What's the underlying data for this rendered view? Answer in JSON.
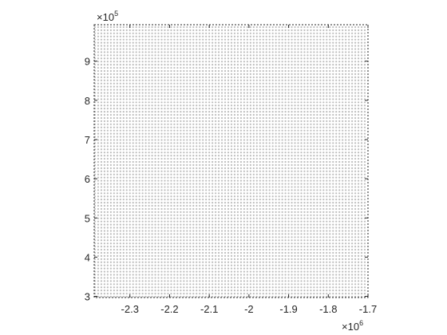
{
  "chart_data": {
    "type": "scatter",
    "title": "",
    "xlabel": "",
    "ylabel": "",
    "x_exponent_label": "×10",
    "x_exponent_power": "6",
    "y_exponent_label": "×10",
    "y_exponent_power": "5",
    "xlim": [
      -2390000,
      -1700000
    ],
    "ylim": [
      297000,
      993000
    ],
    "x_ticks": [
      -2300000,
      -2200000,
      -2100000,
      -2000000,
      -1900000,
      -1800000,
      -1700000
    ],
    "x_tick_labels": [
      "-2.3",
      "-2.2",
      "-2.1",
      "-2",
      "-1.9",
      "-1.8",
      "-1.7"
    ],
    "y_ticks": [
      300000,
      400000,
      500000,
      600000,
      700000,
      800000,
      900000
    ],
    "y_tick_labels": [
      "3",
      "4",
      "5",
      "6",
      "7",
      "8",
      "9"
    ],
    "grid": false,
    "box_style": "dashed",
    "point_grid": {
      "x_start": -2388000,
      "x_end": -1702000,
      "x_step": 8000,
      "y_start": 299000,
      "y_end": 991000,
      "y_step": 8000,
      "color": "#bdbdbd"
    },
    "colors": {
      "axis": "#262626",
      "points": "#bdbdbd",
      "background": "#ffffff"
    }
  }
}
